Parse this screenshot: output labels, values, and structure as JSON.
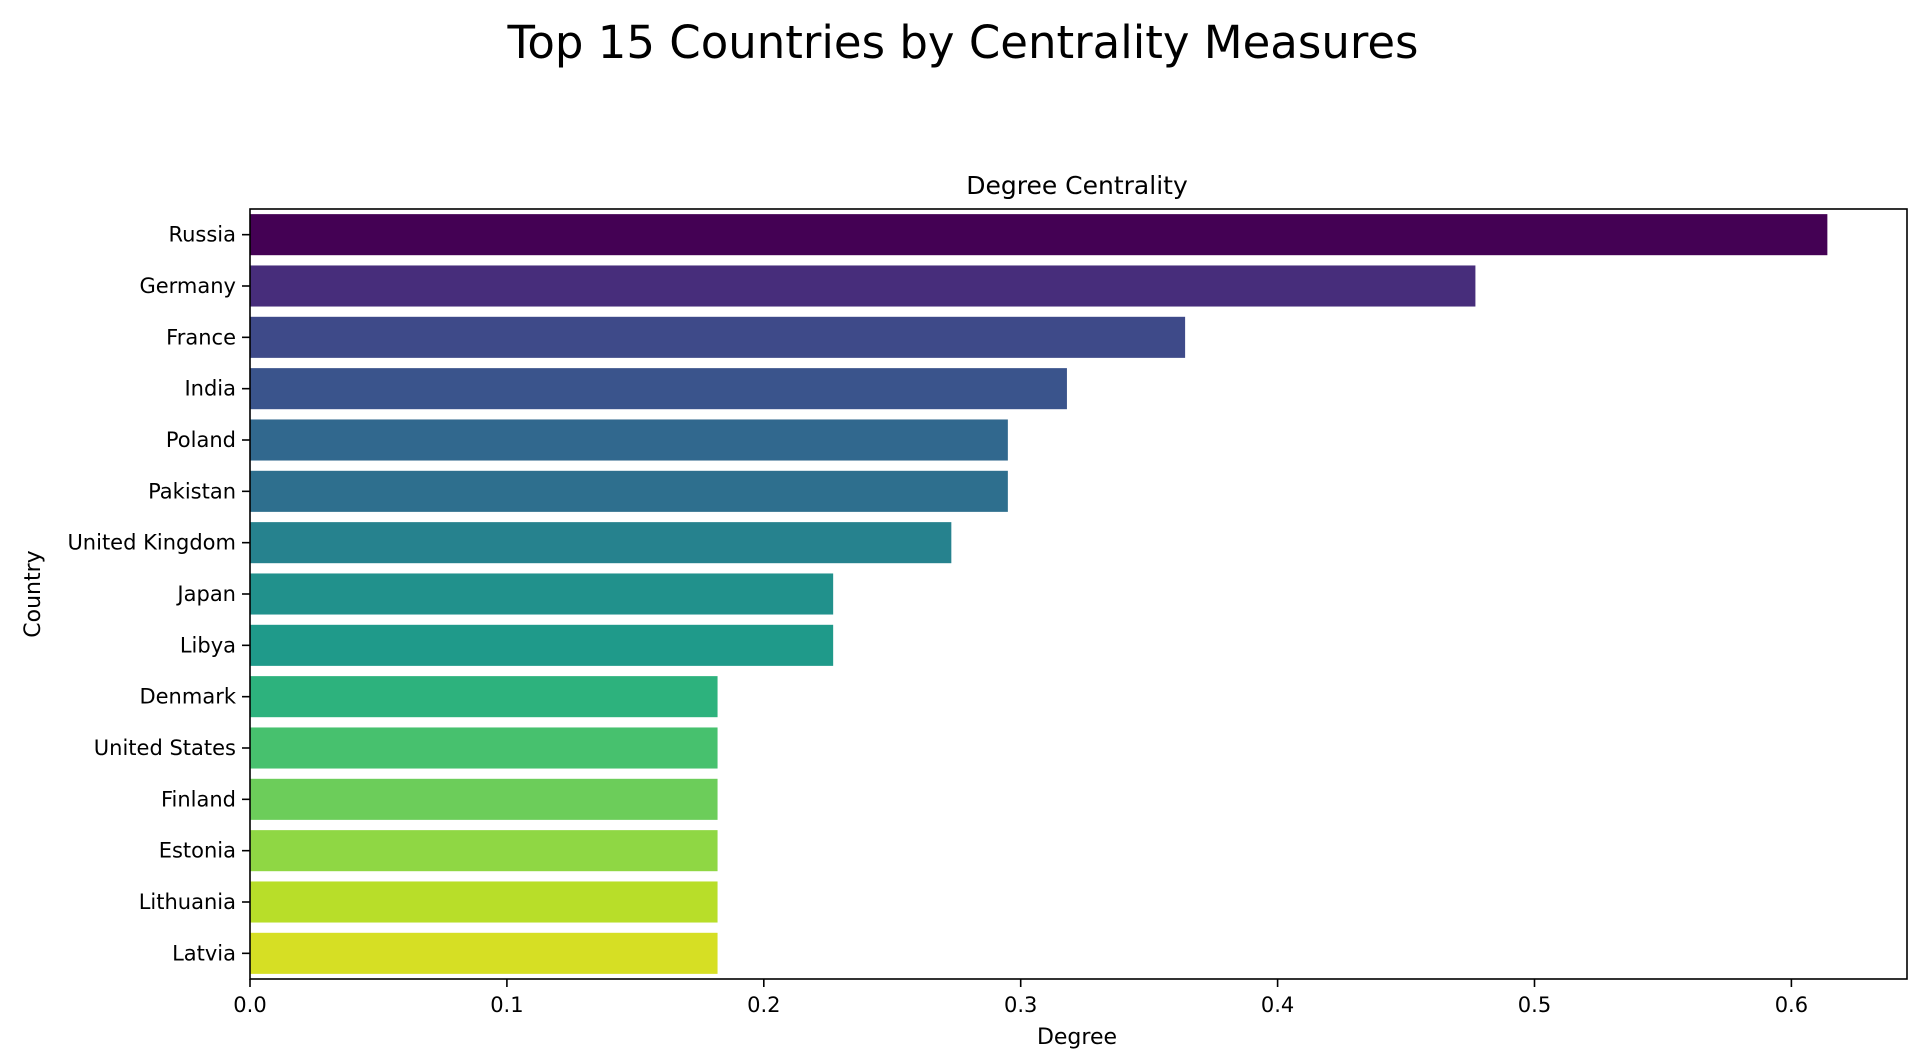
{
  "figure": {
    "title": "Top 15 Countries by Centrality Measures"
  },
  "chart_data": {
    "type": "bar",
    "orientation": "horizontal",
    "title": "Degree Centrality",
    "xlabel": "Degree",
    "ylabel": "Country",
    "categories": [
      "Russia",
      "Germany",
      "France",
      "India",
      "Poland",
      "Pakistan",
      "United Kingdom",
      "Japan",
      "Libya",
      "Denmark",
      "United States",
      "Finland",
      "Estonia",
      "Lithuania",
      "Latvia"
    ],
    "values": [
      0.614,
      0.477,
      0.364,
      0.318,
      0.295,
      0.295,
      0.273,
      0.227,
      0.227,
      0.182,
      0.182,
      0.182,
      0.182,
      0.182,
      0.182
    ],
    "colors": [
      "#440154",
      "#472d7b",
      "#3e4a89",
      "#3a548c",
      "#31688e",
      "#2e6f8e",
      "#26828e",
      "#21918c",
      "#1f9a8a",
      "#2db27d",
      "#47c16e",
      "#6ccd5a",
      "#8fd744",
      "#b8de29",
      "#d6df24"
    ],
    "xlim": [
      0,
      0.645
    ],
    "xticks": [
      0.0,
      0.1,
      0.2,
      0.3,
      0.4,
      0.5,
      0.6
    ],
    "xtick_labels": [
      "0.0",
      "0.1",
      "0.2",
      "0.3",
      "0.4",
      "0.5",
      "0.6"
    ],
    "grid": false,
    "legend": "none"
  }
}
